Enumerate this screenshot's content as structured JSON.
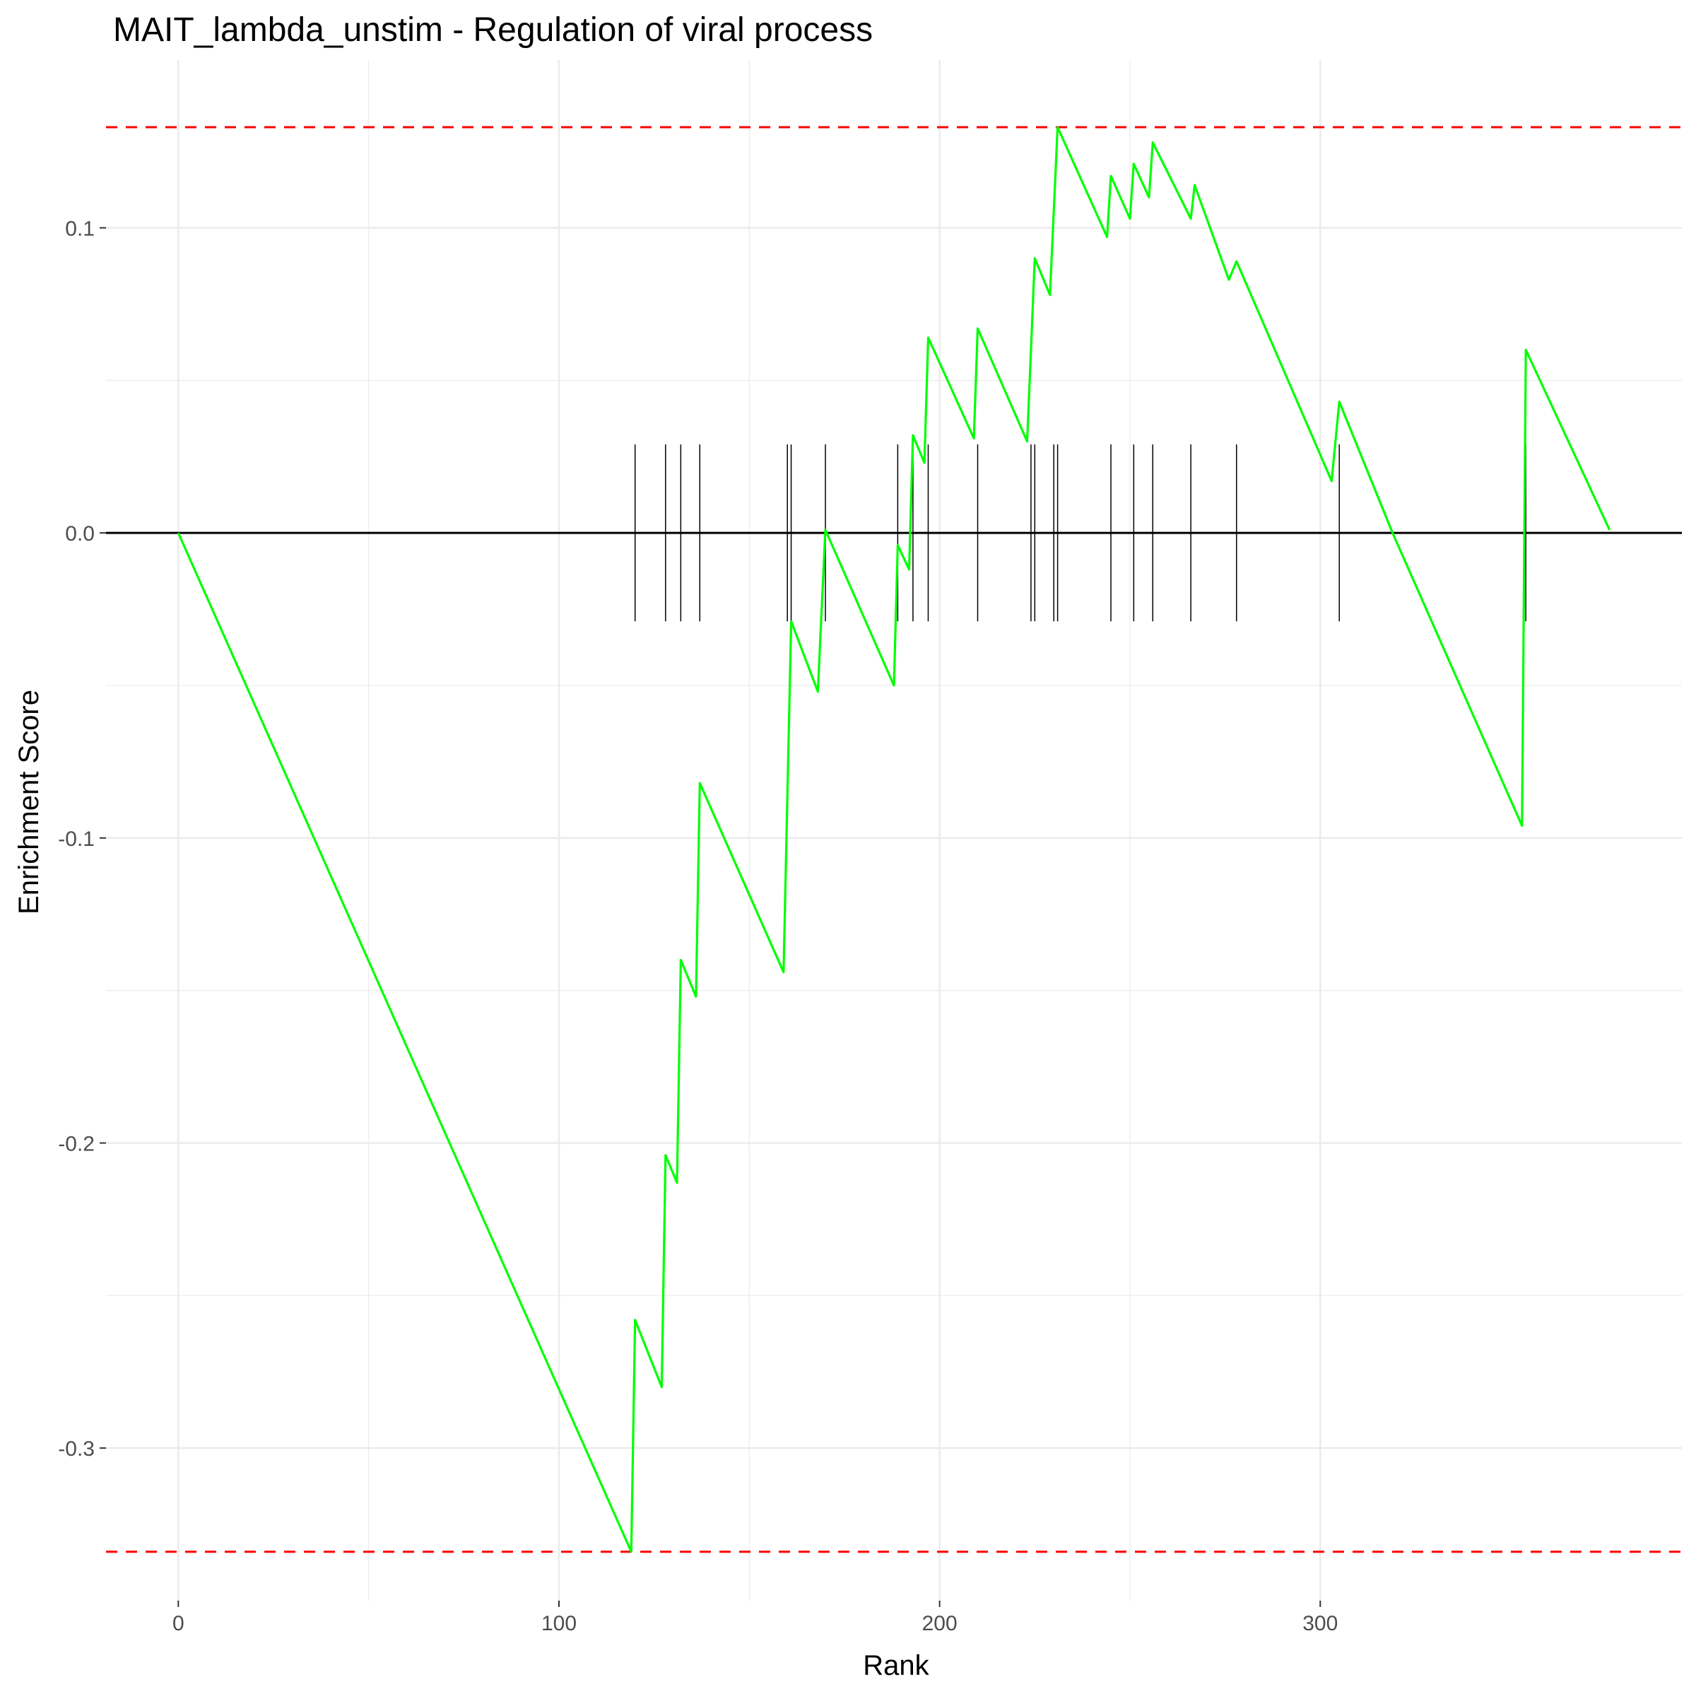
{
  "chart_data": {
    "type": "line",
    "title": "MAIT_lambda_unstim - Regulation of viral process",
    "xlabel": "Rank",
    "ylabel": "Enrichment Score",
    "xlim": [
      -19,
      395
    ],
    "ylim": [
      -0.35,
      0.155
    ],
    "x_ticks": [
      0,
      100,
      200,
      300
    ],
    "x_tick_labels": [
      "0",
      "100",
      "200",
      "300"
    ],
    "y_ticks": [
      -0.3,
      -0.2,
      -0.1,
      0.0,
      0.1
    ],
    "y_tick_labels": [
      "-0.3",
      "-0.2",
      "-0.1",
      "0.0",
      "0.1"
    ],
    "grid": true,
    "legend": "none",
    "colors": {
      "curve": "#00ff00",
      "threshold": "#ff0000",
      "zero_line": "#000000",
      "hits": "#000000",
      "grid": "#ebebeb",
      "tick_label": "#4d4d4d"
    },
    "series": [
      {
        "values": [
          [
            0,
            0.0
          ],
          [
            119,
            -0.334
          ],
          [
            120,
            -0.258
          ],
          [
            127,
            -0.28
          ],
          [
            128,
            -0.204
          ],
          [
            131,
            -0.213
          ],
          [
            132,
            -0.14
          ],
          [
            136,
            -0.152
          ],
          [
            137,
            -0.082
          ],
          [
            159,
            -0.144
          ],
          [
            161,
            -0.029
          ],
          [
            168,
            -0.052
          ],
          [
            170,
            0.001
          ],
          [
            188,
            -0.05
          ],
          [
            189,
            -0.004
          ],
          [
            192,
            -0.012
          ],
          [
            193,
            0.032
          ],
          [
            196,
            0.023
          ],
          [
            197,
            0.064
          ],
          [
            209,
            0.031
          ],
          [
            210,
            0.067
          ],
          [
            223,
            0.03
          ],
          [
            225,
            0.09
          ],
          [
            229,
            0.078
          ],
          [
            231,
            0.133
          ],
          [
            244,
            0.097
          ],
          [
            245,
            0.117
          ],
          [
            250,
            0.103
          ],
          [
            251,
            0.121
          ],
          [
            255,
            0.11
          ],
          [
            256,
            0.128
          ],
          [
            266,
            0.103
          ],
          [
            267,
            0.114
          ],
          [
            276,
            0.083
          ],
          [
            278,
            0.089
          ],
          [
            303,
            0.017
          ],
          [
            305,
            0.043
          ],
          [
            319,
            0.0
          ],
          [
            353,
            -0.096
          ],
          [
            354,
            0.06
          ],
          [
            376,
            0.001
          ]
        ]
      }
    ],
    "hit_ranks": [
      120,
      128,
      132,
      137,
      160,
      161,
      170,
      189,
      193,
      197,
      210,
      224,
      225,
      230,
      231,
      245,
      251,
      256,
      266,
      278,
      305,
      354
    ],
    "hit_tick_range": [
      -0.029,
      0.029
    ],
    "thresholds": [
      0.133,
      -0.334
    ],
    "zero_line": 0.0
  }
}
